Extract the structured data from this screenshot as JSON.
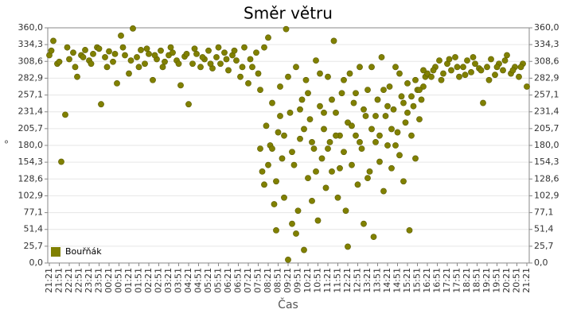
{
  "chart_data": {
    "type": "scatter",
    "title": "Směr větru",
    "xlabel": "Čas",
    "ylabel": "°",
    "legend": "lower left",
    "grid": true,
    "xlim": [
      -0.08,
      24.12
    ],
    "ylim": [
      0,
      360
    ],
    "yticks": [
      {
        "value": 0,
        "label": "0,0"
      },
      {
        "value": 25.7,
        "label": "25,7"
      },
      {
        "value": 51.4,
        "label": "51,4"
      },
      {
        "value": 77.1,
        "label": "77,1"
      },
      {
        "value": 102.9,
        "label": "102,9"
      },
      {
        "value": 128.6,
        "label": "128,6"
      },
      {
        "value": 154.3,
        "label": "154,3"
      },
      {
        "value": 180,
        "label": "180,0"
      },
      {
        "value": 205.7,
        "label": "205,7"
      },
      {
        "value": 231.4,
        "label": "231,4"
      },
      {
        "value": 257.1,
        "label": "257,1"
      },
      {
        "value": 282.9,
        "label": "282,9"
      },
      {
        "value": 308.6,
        "label": "308,6"
      },
      {
        "value": 334.3,
        "label": "334,3"
      },
      {
        "value": 360,
        "label": "360,0"
      }
    ],
    "xticks": [
      {
        "value": 0,
        "label": "21:21"
      },
      {
        "value": 0.5,
        "label": "21:51"
      },
      {
        "value": 1,
        "label": "22:21"
      },
      {
        "value": 1.5,
        "label": "22:51"
      },
      {
        "value": 2,
        "label": "23:21"
      },
      {
        "value": 2.5,
        "label": "23:51"
      },
      {
        "value": 3,
        "label": "00:21"
      },
      {
        "value": 3.5,
        "label": "00:51"
      },
      {
        "value": 4,
        "label": "01:21"
      },
      {
        "value": 4.5,
        "label": "01:51"
      },
      {
        "value": 5,
        "label": "02:21"
      },
      {
        "value": 5.5,
        "label": "02:51"
      },
      {
        "value": 6,
        "label": "03:21"
      },
      {
        "value": 6.5,
        "label": "03:51"
      },
      {
        "value": 7,
        "label": "04:21"
      },
      {
        "value": 7.5,
        "label": "04:51"
      },
      {
        "value": 8,
        "label": "05:21"
      },
      {
        "value": 8.5,
        "label": "05:51"
      },
      {
        "value": 9,
        "label": "06:21"
      },
      {
        "value": 9.5,
        "label": "06:51"
      },
      {
        "value": 10,
        "label": "07:21"
      },
      {
        "value": 10.5,
        "label": "07:51"
      },
      {
        "value": 11,
        "label": "08:21"
      },
      {
        "value": 11.5,
        "label": "08:51"
      },
      {
        "value": 12,
        "label": "09:21"
      },
      {
        "value": 12.5,
        "label": "09:51"
      },
      {
        "value": 13,
        "label": "10:21"
      },
      {
        "value": 13.5,
        "label": "10:51"
      },
      {
        "value": 14,
        "label": "11:21"
      },
      {
        "value": 14.5,
        "label": "11:51"
      },
      {
        "value": 15,
        "label": "12:21"
      },
      {
        "value": 15.5,
        "label": "12:51"
      },
      {
        "value": 16,
        "label": "13:21"
      },
      {
        "value": 16.5,
        "label": "13:51"
      },
      {
        "value": 17,
        "label": "14:21"
      },
      {
        "value": 17.5,
        "label": "14:51"
      },
      {
        "value": 18,
        "label": "15:21"
      },
      {
        "value": 18.5,
        "label": "15:51"
      },
      {
        "value": 19,
        "label": "16:21"
      },
      {
        "value": 19.5,
        "label": "16:51"
      },
      {
        "value": 20,
        "label": "17:21"
      },
      {
        "value": 20.5,
        "label": "17:51"
      },
      {
        "value": 21,
        "label": "18:21"
      },
      {
        "value": 21.5,
        "label": "18:51"
      },
      {
        "value": 22,
        "label": "19:21"
      },
      {
        "value": 22.5,
        "label": "19:51"
      },
      {
        "value": 23,
        "label": "20:21"
      },
      {
        "value": 23.5,
        "label": "20:51"
      },
      {
        "value": 24,
        "label": "21:21"
      }
    ],
    "x": [
      0,
      0.2,
      0.4,
      0.6,
      0.8,
      1,
      1.2,
      1.4,
      1.6,
      1.8,
      2,
      2.2,
      2.4,
      2.6,
      2.8,
      3,
      3.2,
      3.4,
      3.6,
      3.8,
      4,
      4.2,
      4.4,
      4.6,
      4.8,
      5,
      5.2,
      5.4,
      5.6,
      5.8,
      6,
      6.2,
      6.4,
      6.6,
      6.8,
      7,
      7.2,
      7.4,
      7.6,
      7.8,
      8,
      8.2,
      8.4,
      8.6,
      8.8,
      9,
      9.2,
      9.4,
      9.6,
      9.8,
      10,
      10.2,
      10.4,
      0.1,
      0.5,
      0.9,
      1.3,
      1.7,
      2.1,
      2.5,
      2.9,
      3.3,
      3.7,
      4.1,
      4.5,
      4.9,
      5.3,
      5.7,
      6.1,
      6.5,
      6.9,
      7.3,
      7.7,
      8.1,
      8.5,
      8.9,
      9.3,
      9.7,
      10.1,
      10.5,
      10.6,
      10.7,
      10.8,
      10.9,
      11,
      11.1,
      11.2,
      11.3,
      11.4,
      11.5,
      11.6,
      11.7,
      11.8,
      11.9,
      12,
      12.1,
      12.2,
      12.3,
      12.4,
      12.5,
      12.6,
      12.7,
      12.8,
      12.9,
      13,
      13.1,
      13.2,
      13.3,
      13.4,
      13.5,
      13.6,
      13.7,
      13.8,
      13.9,
      14,
      14.1,
      14.2,
      14.3,
      14.4,
      14.5,
      14.6,
      14.7,
      14.8,
      14.9,
      15,
      15.1,
      15.2,
      15.3,
      15.4,
      15.5,
      15.6,
      15.7,
      15.8,
      15.9,
      16,
      16.1,
      16.2,
      16.3,
      16.4,
      16.5,
      16.6,
      16.7,
      16.8,
      16.9,
      17,
      17.1,
      17.2,
      17.3,
      17.4,
      17.5,
      17.6,
      17.7,
      17.8,
      17.9,
      18,
      18.1,
      18.2,
      18.3,
      18.4,
      18.5,
      18.6,
      18.7,
      18.8,
      18.9,
      19,
      10.6,
      10.8,
      11,
      11.2,
      11.4,
      11.6,
      11.8,
      12,
      12.2,
      12.4,
      12.6,
      12.8,
      13,
      13.2,
      13.4,
      13.6,
      13.8,
      14,
      14.2,
      14.4,
      14.6,
      14.8,
      15,
      15.2,
      15.4,
      15.6,
      15.8,
      16,
      16.2,
      16.4,
      16.6,
      16.8,
      17,
      17.2,
      17.4,
      17.6,
      17.8,
      18,
      18.2,
      18.4,
      18.6,
      18.8,
      19.2,
      19.4,
      19.6,
      19.8,
      20,
      20.2,
      20.4,
      20.6,
      20.8,
      21,
      21.2,
      21.4,
      21.6,
      21.8,
      22,
      22.2,
      22.4,
      22.6,
      22.8,
      23,
      23.2,
      23.4,
      23.6,
      23.8,
      24,
      19.3,
      19.7,
      20.1,
      20.5,
      20.9,
      21.3,
      21.7,
      22.1,
      22.5,
      22.9,
      23.3,
      23.7
    ],
    "series": [
      {
        "name": "Bouřňák",
        "color": "#808000",
        "values": [
          318,
          340,
          305,
          155,
          227,
          312,
          322,
          285,
          318,
          326,
          310,
          320,
          330,
          243,
          315,
          324,
          308,
          275,
          348,
          318,
          290,
          359,
          315,
          326,
          305,
          320,
          280,
          312,
          325,
          308,
          318,
          322,
          310,
          272,
          316,
          243,
          305,
          320,
          300,
          312,
          325,
          298,
          315,
          305,
          322,
          295,
          318,
          310,
          285,
          330,
          275,
          300,
          322,
          325,
          308,
          330,
          300,
          315,
          305,
          328,
          300,
          320,
          330,
          310,
          300,
          328,
          318,
          300,
          330,
          305,
          320,
          328,
          315,
          305,
          330,
          312,
          325,
          300,
          312,
          290,
          175,
          140,
          120,
          210,
          345,
          180,
          245,
          90,
          50,
          200,
          270,
          160,
          100,
          358,
          5,
          230,
          60,
          150,
          300,
          80,
          190,
          250,
          20,
          280,
          130,
          220,
          95,
          175,
          310,
          65,
          240,
          160,
          205,
          115,
          285,
          185,
          140,
          340,
          230,
          100,
          195,
          260,
          170,
          80,
          215,
          290,
          150,
          245,
          195,
          120,
          300,
          175,
          60,
          225,
          265,
          140,
          205,
          40,
          185,
          250,
          155,
          315,
          110,
          225,
          180,
          270,
          145,
          235,
          300,
          200,
          165,
          255,
          125,
          215,
          275,
          50,
          195,
          240,
          160,
          265,
          220,
          250,
          270,
          285,
          290,
          265,
          330,
          150,
          175,
          125,
          225,
          195,
          285,
          170,
          45,
          235,
          205,
          260,
          185,
          140,
          290,
          230,
          175,
          250,
          195,
          145,
          280,
          25,
          210,
          260,
          185,
          235,
          130,
          300,
          225,
          195,
          265,
          240,
          205,
          180,
          290,
          245,
          230,
          255,
          280,
          265,
          295,
          285,
          300,
          310,
          290,
          305,
          295,
          315,
          285,
          300,
          310,
          292,
          305,
          298,
          245,
          300,
          312,
          288,
          305,
          295,
          318,
          290,
          300,
          285,
          305,
          270,
          295,
          280,
          312,
          300,
          288,
          315,
          295,
          280,
          300,
          310,
          295,
          300
        ]
      }
    ]
  }
}
